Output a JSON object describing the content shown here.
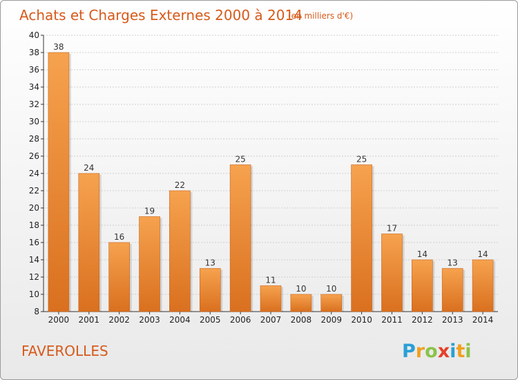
{
  "title": "Achats et Charges Externes 2000 à 2014",
  "subtitle": "(en milliers d'€)",
  "place": "FAVEROLLES",
  "logo": {
    "letters": [
      "P",
      "r",
      "o",
      "x",
      "i",
      "t",
      "i"
    ],
    "colors": [
      "#2a9fd6",
      "#f0a020",
      "#8bc34a",
      "#e63f2a",
      "#2a9fd6",
      "#f0a020",
      "#8bc34a"
    ]
  },
  "colors": {
    "bar_top": "#f6a24e",
    "bar_bottom": "#d9701f",
    "accent": "#d65a1a"
  },
  "chart_data": {
    "type": "bar",
    "categories": [
      "2000",
      "2001",
      "2002",
      "2003",
      "2004",
      "2005",
      "2006",
      "2007",
      "2008",
      "2009",
      "2010",
      "2011",
      "2012",
      "2013",
      "2014"
    ],
    "values": [
      38,
      24,
      16,
      19,
      22,
      13,
      25,
      11,
      10,
      10,
      25,
      17,
      14,
      13,
      14
    ],
    "ylim": [
      8,
      40
    ],
    "yticks": [
      8,
      10,
      12,
      14,
      16,
      18,
      20,
      22,
      24,
      26,
      28,
      30,
      32,
      34,
      36,
      38,
      40
    ],
    "grid": true,
    "xlabel": "",
    "ylabel": ""
  }
}
